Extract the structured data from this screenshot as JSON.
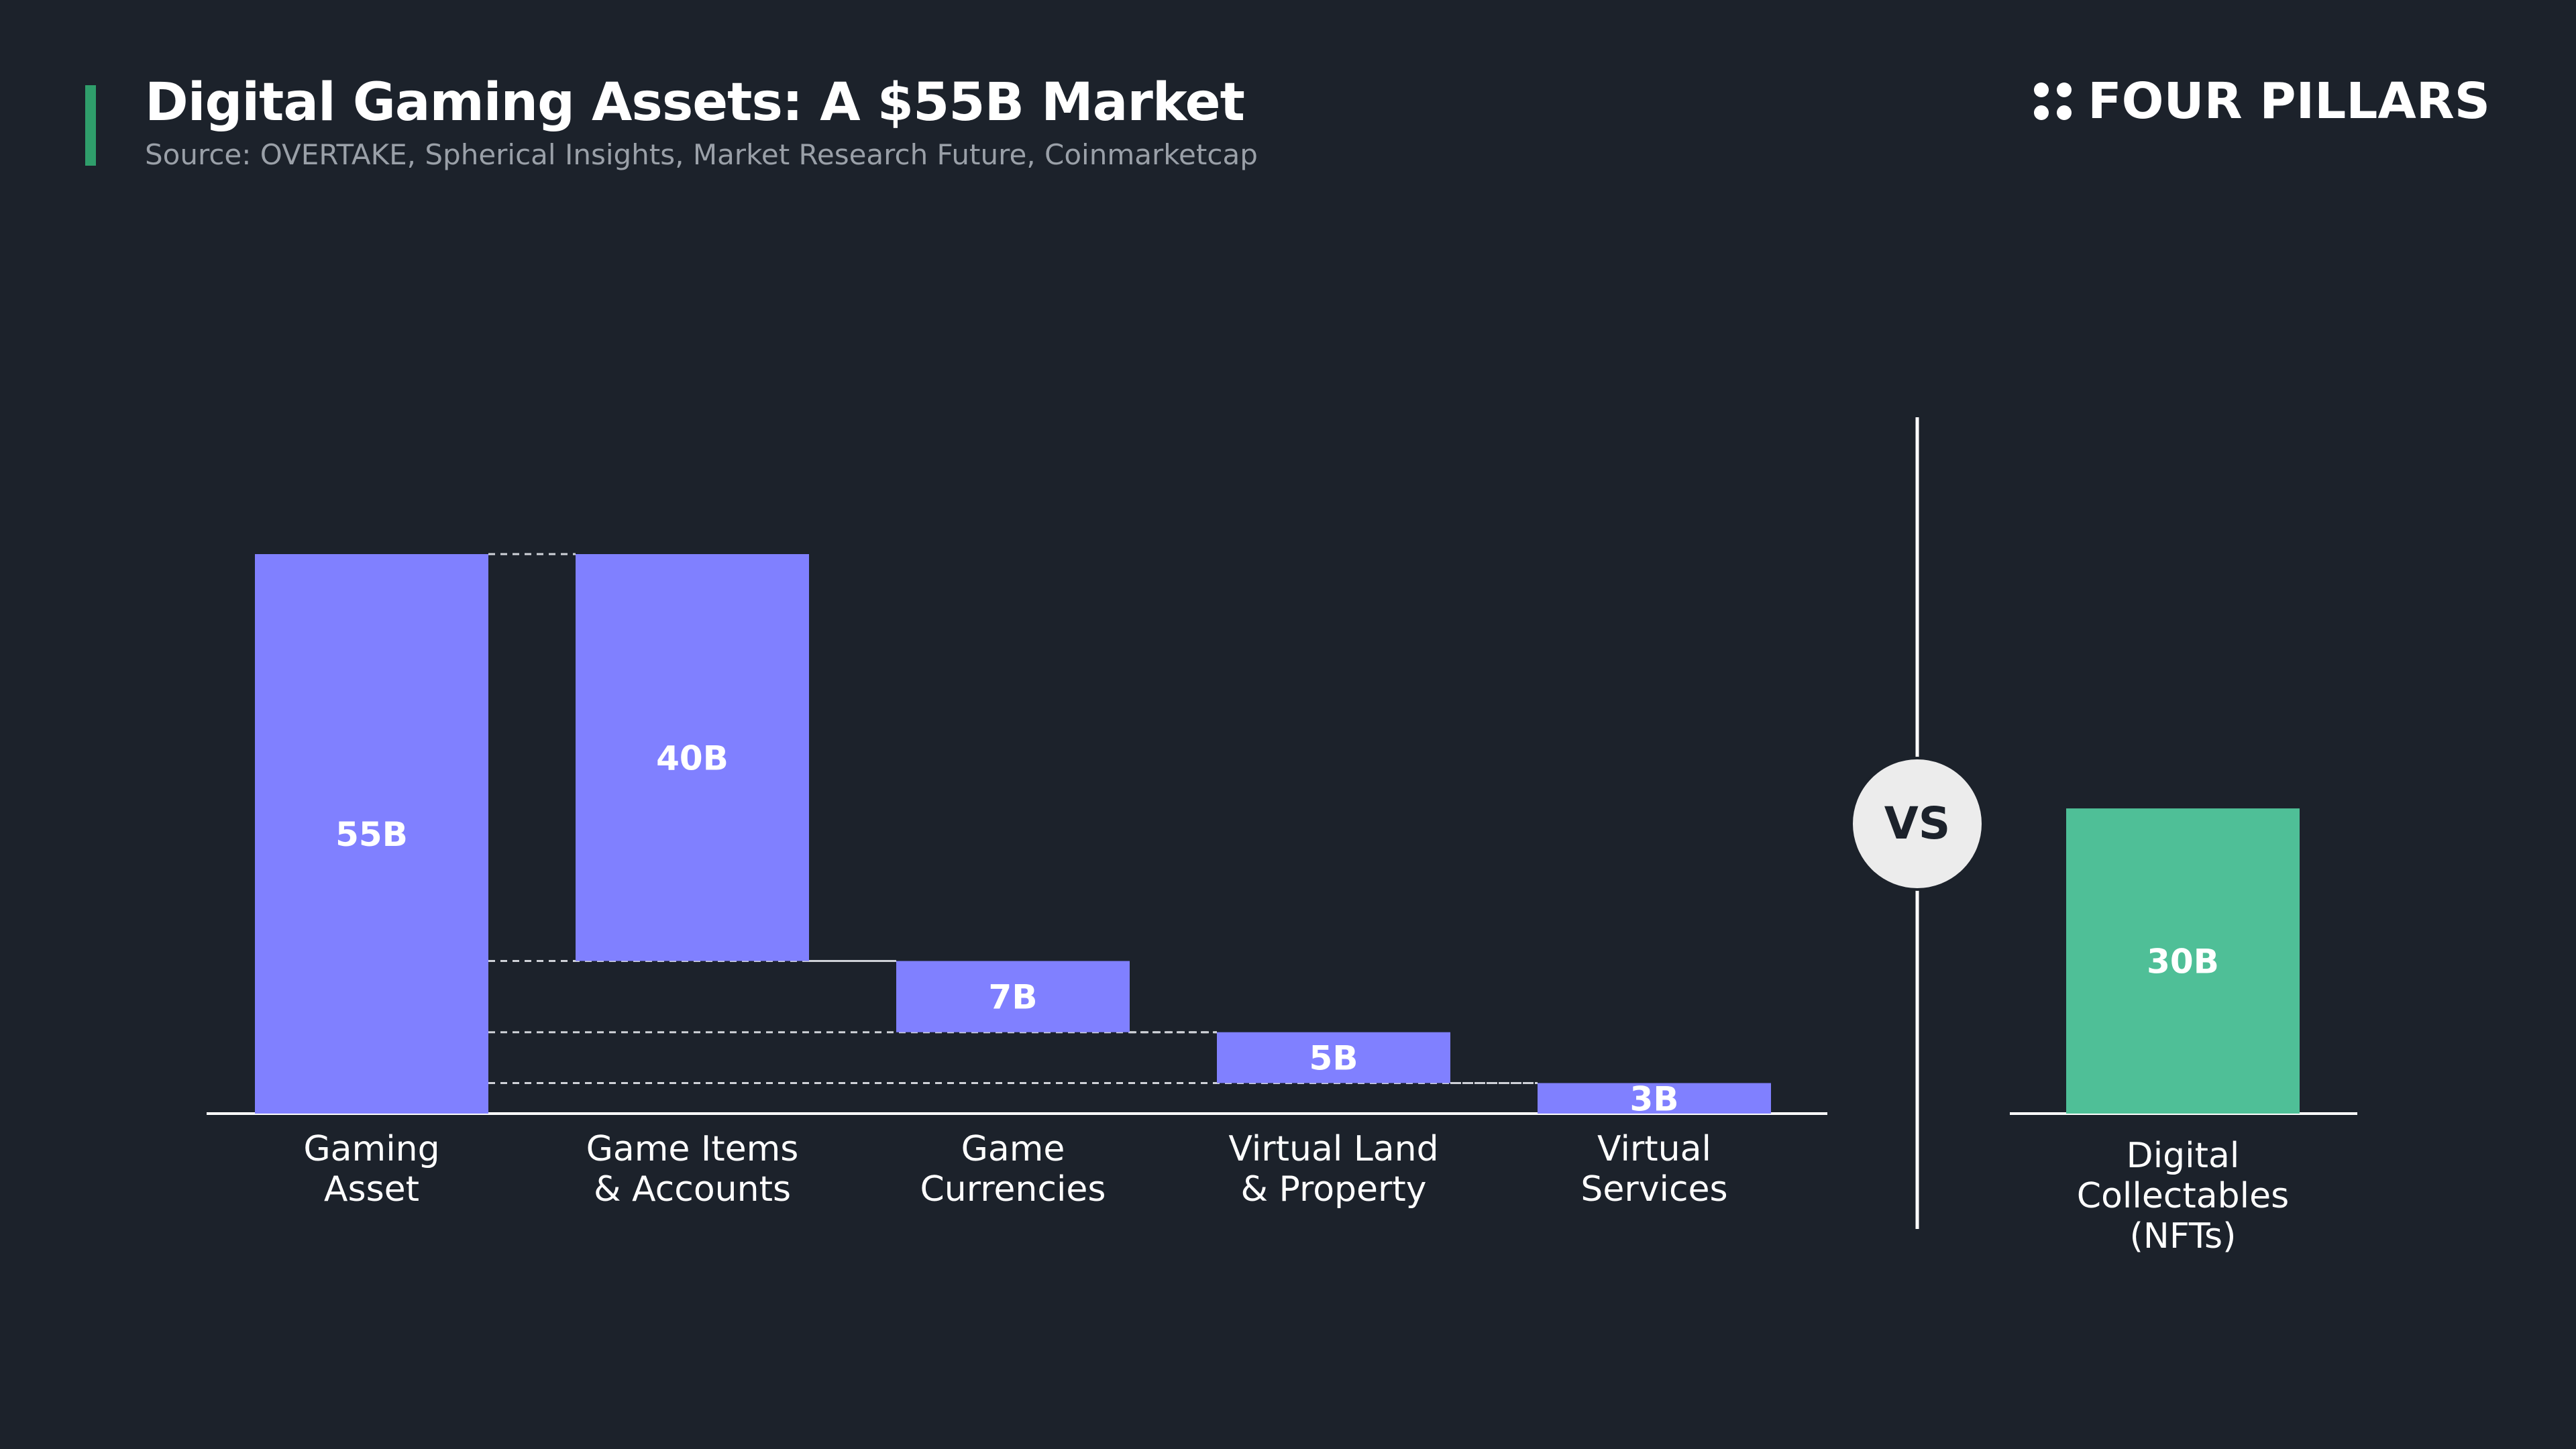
{
  "header": {
    "title": "Digital Gaming Assets: A $55B Market",
    "subtitle": "Source: OVERTAKE, Spherical Insights, Market Research Future, Coinmarketcap",
    "accent_color": "#2f9e6b"
  },
  "brand": {
    "name": "FOUR PILLARS",
    "icon": "four-dots-icon"
  },
  "chart_data": [
    {
      "type": "bar",
      "subtype": "waterfall",
      "categories": [
        "Gaming\nAsset",
        "Game Items\n& Accounts",
        "Game\nCurrencies",
        "Virtual Land\n& Property",
        "Virtual\nServices"
      ],
      "values": [
        55,
        40,
        7,
        5,
        3
      ],
      "value_labels": [
        "55B",
        "40B",
        "7B",
        "5B",
        "3B"
      ],
      "units": "B",
      "ylim": [
        0,
        55
      ],
      "color": "#8080ff",
      "connectors": "dashed"
    },
    {
      "type": "bar",
      "categories": [
        "Digital\nCollectables\n(NFTs)"
      ],
      "values": [
        30
      ],
      "value_labels": [
        "30B"
      ],
      "units": "B",
      "ylim": [
        0,
        55
      ],
      "color": "#4fbf97"
    }
  ],
  "separator": {
    "label": "VS"
  }
}
